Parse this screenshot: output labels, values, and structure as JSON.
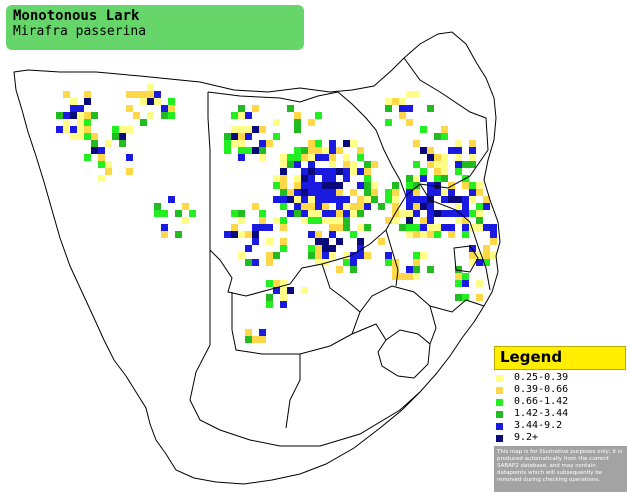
{
  "title": {
    "common_name": "Monotonous Lark",
    "scientific_name": "Mirafra passerina"
  },
  "legend": {
    "title": "Legend",
    "items": [
      {
        "label": "0.25-0.39",
        "color": "#ffff88"
      },
      {
        "label": "0.39-0.66",
        "color": "#ffd84a"
      },
      {
        "label": "0.66-1.42",
        "color": "#22ee22"
      },
      {
        "label": "1.42-3.44",
        "color": "#22bb22"
      },
      {
        "label": "3.44-9.2",
        "color": "#1a1ae0"
      },
      {
        "label": "9.2+",
        "color": "#0a0a7a"
      }
    ],
    "note": "This map is for illustrative purposes only; it is produced automatically from the current SABAP2 database, and may contain datapoints which will subsequently be removed during checking operations."
  },
  "colors": {
    "title_bg": "#66d66a",
    "legend_header": "#ffee00",
    "legend_note_bg": "#a3a3a3",
    "border_line": "#000000"
  }
}
